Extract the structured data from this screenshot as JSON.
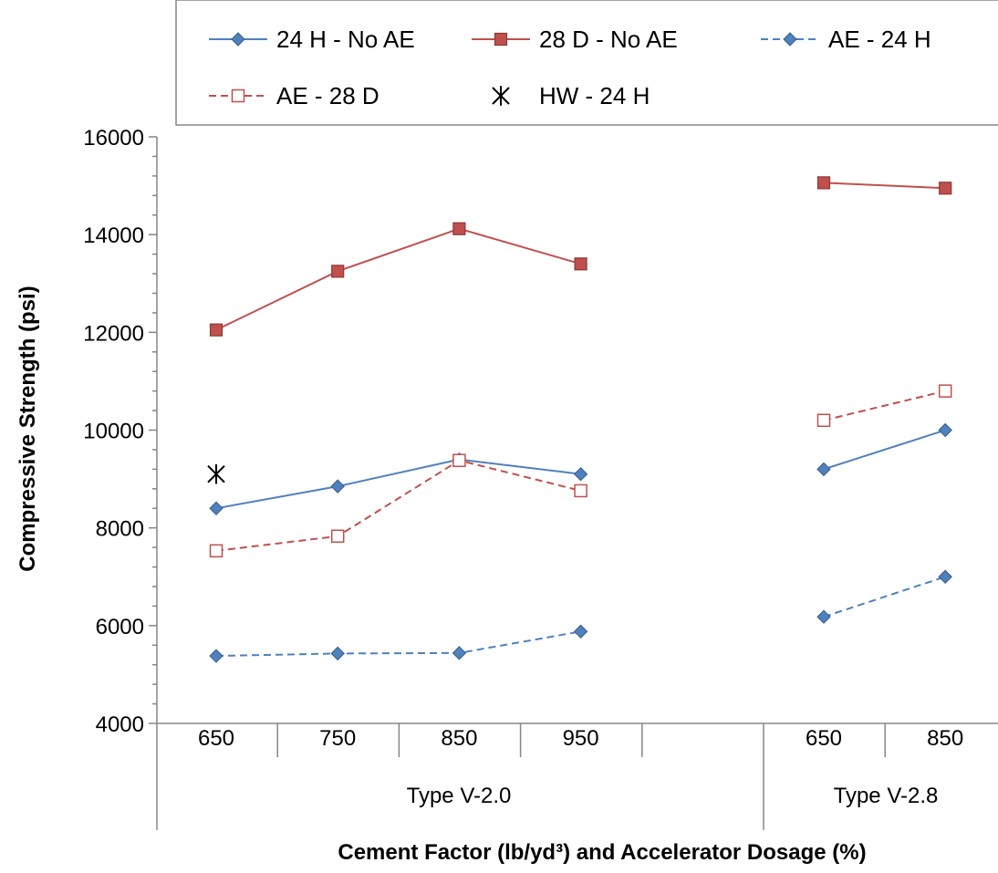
{
  "chart_data": {
    "type": "line",
    "ylabel": "Compressive Strength  (psi)",
    "xlabel": "Cement Factor  (lb/yd³) and Accelerator Dosage (%)",
    "ylim": [
      4000,
      16000
    ],
    "y_ticks": [
      "4000",
      "6000",
      "8000",
      "10000",
      "12000",
      "14000",
      "16000"
    ],
    "categories": [
      "650",
      "750",
      "850",
      "950",
      "",
      "650",
      "850"
    ],
    "groups": [
      {
        "label": "Type V-2.0",
        "categories": [
          "650",
          "750",
          "850",
          "950",
          ""
        ]
      },
      {
        "label": "Type V-2.8",
        "categories": [
          "650",
          "850"
        ]
      }
    ],
    "legend_position": "top",
    "series": [
      {
        "name": "24 H - No AE",
        "color": "#4f81bd",
        "marker": "diamond-open",
        "dash": "solid",
        "values": [
          8400,
          8850,
          9400,
          9100,
          null,
          9200,
          10000
        ]
      },
      {
        "name": "28 D - No AE",
        "color": "#c0504d",
        "marker": "square-filled",
        "dash": "solid",
        "values": [
          12050,
          13250,
          14120,
          13400,
          null,
          15060,
          14950
        ]
      },
      {
        "name": "AE - 24 H",
        "color": "#4f81bd",
        "marker": "diamond-filled",
        "dash": "dashed",
        "values": [
          5380,
          5430,
          5440,
          5880,
          null,
          6180,
          7000
        ]
      },
      {
        "name": "AE - 28 D",
        "color": "#c0504d",
        "marker": "square-open",
        "dash": "dashed",
        "values": [
          7530,
          7830,
          9380,
          8760,
          null,
          10200,
          10800
        ]
      },
      {
        "name": "HW - 24 H",
        "color": "#000000",
        "marker": "asterisk",
        "dash": "none",
        "values": [
          9100,
          null,
          null,
          null,
          null,
          null,
          null
        ]
      }
    ]
  }
}
